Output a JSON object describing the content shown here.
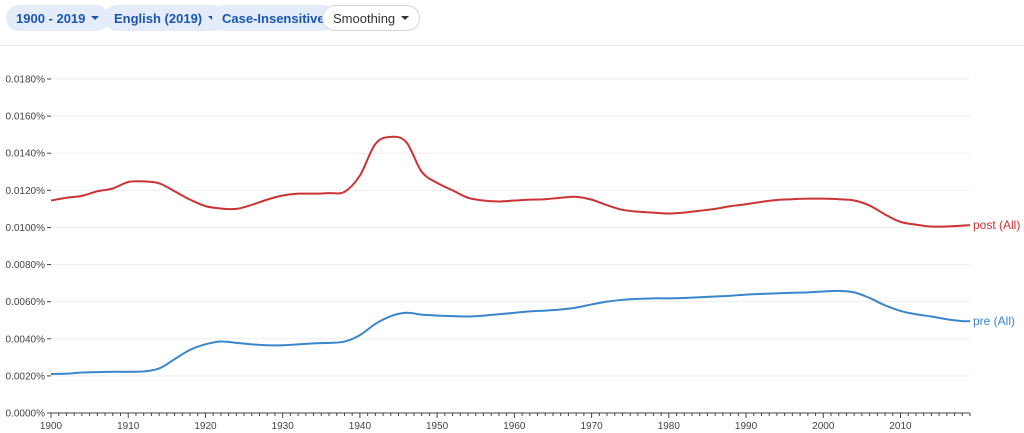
{
  "toolbar": {
    "year_range": "1900 - 2019",
    "corpus": "English (2019)",
    "case": "Case-Insensitive",
    "smoothing": "Smoothing"
  },
  "colors": {
    "post": "#cc3333",
    "pre": "#3a86cc",
    "grid": "#eeeeee",
    "axis": "#444444"
  },
  "chart_data": {
    "type": "line",
    "title": "",
    "xlabel": "",
    "ylabel": "",
    "xlim": [
      1900,
      2019
    ],
    "ylim": [
      0,
      0.018
    ],
    "grid": true,
    "x_ticks": [
      1900,
      1910,
      1920,
      1930,
      1940,
      1950,
      1960,
      1970,
      1980,
      1990,
      2000,
      2010
    ],
    "y_ticks": [
      "0.0000%",
      "0.0020%",
      "0.0040%",
      "0.0060%",
      "0.0080%",
      "0.0100%",
      "0.0120%",
      "0.0140%",
      "0.0160%",
      "0.0180%"
    ],
    "y_tick_values": [
      0,
      0.002,
      0.004,
      0.006,
      0.008,
      0.01,
      0.012,
      0.014,
      0.016,
      0.018
    ],
    "series": [
      {
        "name": "post (All)",
        "color": "#cc3333",
        "x": [
          1900,
          1902,
          1904,
          1906,
          1908,
          1910,
          1912,
          1914,
          1916,
          1918,
          1920,
          1922,
          1924,
          1926,
          1928,
          1930,
          1932,
          1934,
          1936,
          1938,
          1940,
          1942,
          1944,
          1946,
          1948,
          1950,
          1952,
          1954,
          1956,
          1958,
          1960,
          1962,
          1964,
          1966,
          1968,
          1970,
          1972,
          1974,
          1976,
          1978,
          1980,
          1982,
          1984,
          1986,
          1988,
          1990,
          1992,
          1994,
          1996,
          1998,
          2000,
          2002,
          2004,
          2006,
          2008,
          2010,
          2012,
          2014,
          2016,
          2018,
          2019
        ],
        "values": [
          0.01145,
          0.0116,
          0.0117,
          0.01195,
          0.0121,
          0.01245,
          0.01248,
          0.01238,
          0.01195,
          0.0115,
          0.01115,
          0.01102,
          0.011,
          0.01122,
          0.0115,
          0.01172,
          0.01182,
          0.01182,
          0.01185,
          0.01192,
          0.0128,
          0.0145,
          0.01488,
          0.0146,
          0.013,
          0.0124,
          0.012,
          0.0116,
          0.01145,
          0.0114,
          0.01145,
          0.0115,
          0.01152,
          0.0116,
          0.01165,
          0.0115,
          0.0112,
          0.01095,
          0.01085,
          0.0108,
          0.01075,
          0.0108,
          0.0109,
          0.011,
          0.01115,
          0.01125,
          0.01138,
          0.01148,
          0.01152,
          0.01155,
          0.01155,
          0.01152,
          0.01145,
          0.01118,
          0.0107,
          0.0103,
          0.01015,
          0.01005,
          0.01005,
          0.0101,
          0.01012
        ]
      },
      {
        "name": "pre (All)",
        "color": "#3a86cc",
        "x": [
          1900,
          1902,
          1904,
          1906,
          1908,
          1910,
          1912,
          1914,
          1916,
          1918,
          1920,
          1922,
          1924,
          1926,
          1928,
          1930,
          1932,
          1934,
          1936,
          1938,
          1940,
          1942,
          1944,
          1946,
          1948,
          1950,
          1952,
          1954,
          1956,
          1958,
          1960,
          1962,
          1964,
          1966,
          1968,
          1970,
          1972,
          1974,
          1976,
          1978,
          1980,
          1982,
          1984,
          1986,
          1988,
          1990,
          1992,
          1994,
          1996,
          1998,
          2000,
          2002,
          2004,
          2006,
          2008,
          2010,
          2012,
          2014,
          2016,
          2018,
          2019
        ],
        "values": [
          0.0021,
          0.00212,
          0.00218,
          0.0022,
          0.00222,
          0.00222,
          0.00224,
          0.0024,
          0.0029,
          0.0034,
          0.0037,
          0.00385,
          0.00378,
          0.0037,
          0.00365,
          0.00365,
          0.0037,
          0.00375,
          0.00378,
          0.00385,
          0.0042,
          0.0048,
          0.00522,
          0.0054,
          0.0053,
          0.00525,
          0.00522,
          0.0052,
          0.00525,
          0.00532,
          0.0054,
          0.00548,
          0.00552,
          0.00558,
          0.00568,
          0.00585,
          0.006,
          0.0061,
          0.00615,
          0.00618,
          0.00618,
          0.0062,
          0.00624,
          0.00628,
          0.00632,
          0.00638,
          0.00642,
          0.00645,
          0.00648,
          0.0065,
          0.00655,
          0.00658,
          0.0065,
          0.0062,
          0.0058,
          0.0055,
          0.00532,
          0.0052,
          0.00505,
          0.00495,
          0.00495
        ]
      }
    ]
  }
}
